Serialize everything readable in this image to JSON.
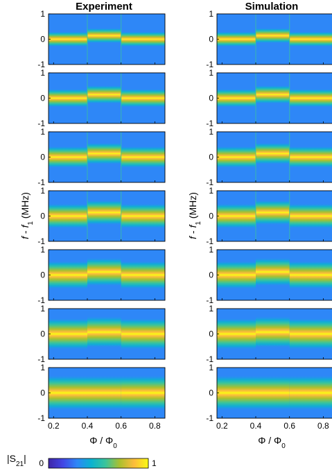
{
  "chart_data": {
    "type": "heatmap",
    "columns": [
      {
        "title": "Experiment",
        "ylabel": "f - f1 (MHz)",
        "xlabel": "Φ / Φ0"
      },
      {
        "title": "Simulation",
        "ylabel": "f - f1 (MHz)",
        "xlabel": "Φ / Φ0"
      }
    ],
    "xlim": [
      0.17,
      0.86
    ],
    "ylim": [
      -1,
      1
    ],
    "xticks": [
      "0.2",
      "0.4",
      "0.6",
      "0.8"
    ],
    "xtick_values": [
      0.2,
      0.4,
      0.6,
      0.8
    ],
    "yticks": [
      "-1",
      "0",
      "1"
    ],
    "ytick_values": [
      -1,
      0,
      1
    ],
    "panel_rows": 7,
    "band_center_outer": [
      0.0,
      0.0,
      0.0,
      0.0,
      0.0,
      0.0,
      0.0
    ],
    "band_center_inner": [
      0.14,
      0.14,
      0.14,
      0.14,
      0.12,
      0.07,
      0.0
    ],
    "transition_flux": [
      0.4,
      0.6
    ],
    "colorbar": {
      "label_main": "|S",
      "label_sub": "21",
      "label_end": "|",
      "min_label": "0",
      "max_label": "1",
      "range": [
        0,
        1
      ]
    },
    "colormap": [
      "#3e26a8",
      "#4245e4",
      "#2e87f7",
      "#0bb3d0",
      "#3ac49b",
      "#acc02e",
      "#fdbc3c",
      "#f9fb14"
    ]
  }
}
